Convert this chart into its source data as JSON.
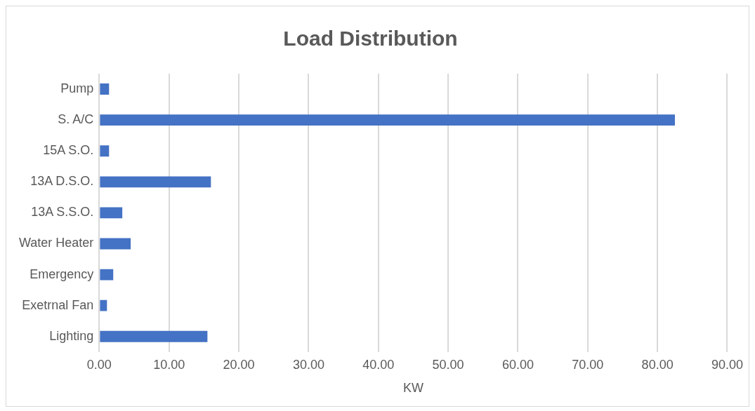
{
  "chart_data": {
    "type": "bar",
    "orientation": "horizontal",
    "title": "Load Distribution",
    "xlabel": "KW",
    "categories": [
      "Pump",
      "S. A/C",
      "15A S.O.",
      "13A D.S.O.",
      "13A S.S.O.",
      "Water Heater",
      "Emergency",
      "Exetrnal Fan",
      "Lighting"
    ],
    "values": [
      1.4,
      82.5,
      1.4,
      16.0,
      3.3,
      4.5,
      2.0,
      1.1,
      15.5
    ],
    "color": "#4472c4",
    "xlim": [
      0,
      90
    ],
    "xticks": [
      {
        "value": 0,
        "label": "0.00"
      },
      {
        "value": 10,
        "label": "10.00"
      },
      {
        "value": 20,
        "label": "20.00"
      },
      {
        "value": 30,
        "label": "30.00"
      },
      {
        "value": 40,
        "label": "40.00"
      },
      {
        "value": 50,
        "label": "50.00"
      },
      {
        "value": 60,
        "label": "60.00"
      },
      {
        "value": 70,
        "label": "70.00"
      },
      {
        "value": 80,
        "label": "80.00"
      },
      {
        "value": 90,
        "label": "90.00"
      }
    ],
    "grid": "x",
    "legend": false
  }
}
